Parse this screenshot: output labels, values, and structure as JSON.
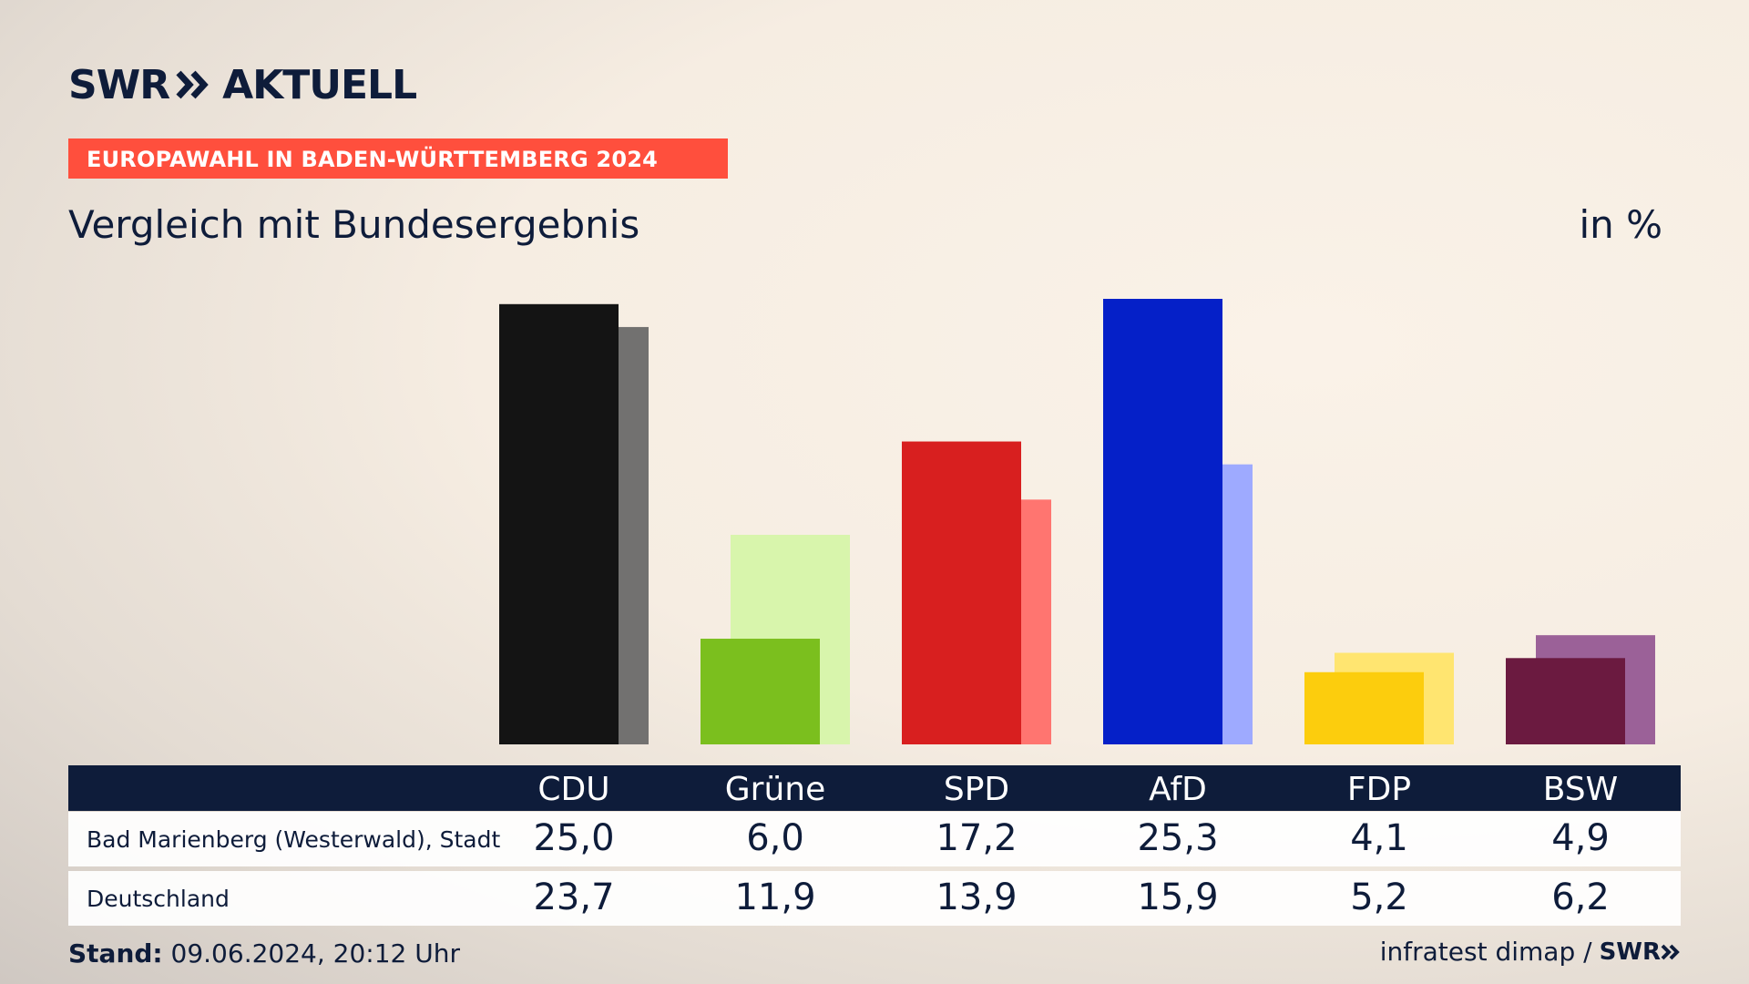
{
  "brand": {
    "logo_left": "SWR",
    "logo_right": "AKTUELL",
    "footer_logo": "SWR"
  },
  "banner": "EUROPAWAHL IN BADEN-WÜRTTEMBERG 2024",
  "subtitle": "Vergleich mit Bundesergebnis",
  "unit": "in %",
  "colors": {
    "text": "#0e1c3a",
    "banner": "#ff4f3d",
    "table_head": "#0e1c3a"
  },
  "chart_data": {
    "type": "bar",
    "categories": [
      "CDU",
      "Grüne",
      "SPD",
      "AfD",
      "FDP",
      "BSW"
    ],
    "series": [
      {
        "name": "Bad Marienberg (Westerwald), Stadt",
        "values": [
          25.0,
          6.0,
          17.2,
          25.3,
          4.1,
          4.9
        ],
        "colors": [
          "#141414",
          "#7bbf1e",
          "#d81f1f",
          "#0520c8",
          "#fccd0d",
          "#6b1a40"
        ]
      },
      {
        "name": "Deutschland",
        "values": [
          23.7,
          11.9,
          13.9,
          15.9,
          5.2,
          6.2
        ],
        "colors": [
          "#727170",
          "#d8f5ac",
          "#ff7570",
          "#9eaaff",
          "#ffe570",
          "#9b6198"
        ]
      }
    ],
    "value_labels": {
      "row1": [
        "25,0",
        "6,0",
        "17,2",
        "25,3",
        "4,1",
        "4,9"
      ],
      "row2": [
        "23,7",
        "11,9",
        "13,9",
        "15,9",
        "5,2",
        "6,2"
      ]
    },
    "ylim": [
      0,
      25.3
    ],
    "grid": false
  },
  "table": {
    "row1_label": "Bad Marienberg (Westerwald), Stadt",
    "row2_label": "Deutschland"
  },
  "footer": {
    "stand_label": "Stand:",
    "stand_value": "09.06.2024, 20:12 Uhr",
    "source": "infratest dimap /"
  }
}
